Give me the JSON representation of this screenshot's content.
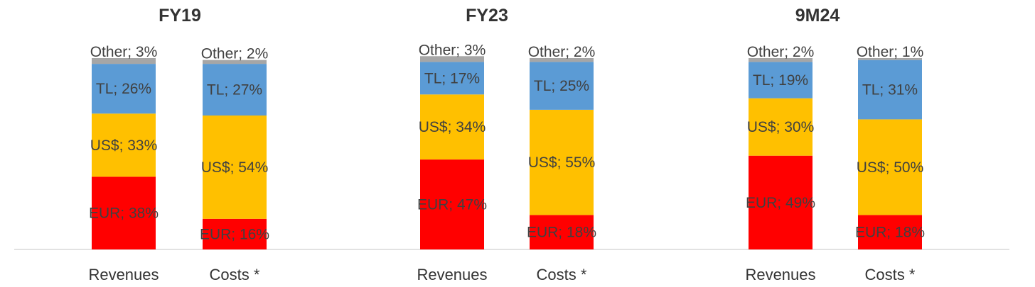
{
  "chart_data": [
    {
      "type": "bar",
      "stacked": true,
      "title": "FY19",
      "categories": [
        "Revenues",
        "Costs *"
      ],
      "series": [
        {
          "name": "EUR",
          "values": [
            38,
            16
          ]
        },
        {
          "name": "US$",
          "values": [
            33,
            54
          ]
        },
        {
          "name": "TL",
          "values": [
            26,
            27
          ]
        },
        {
          "name": "Other",
          "values": [
            3,
            2
          ]
        }
      ],
      "data_labels": [
        [
          "EUR; 38%",
          "EUR; 16%"
        ],
        [
          "US$; 33%",
          "US$; 54%"
        ],
        [
          "TL; 26%",
          "TL; 27%"
        ],
        [
          "Other; 3%",
          "Other; 2%"
        ]
      ],
      "ylim": [
        0,
        100
      ],
      "grid": false
    },
    {
      "type": "bar",
      "stacked": true,
      "title": "FY23",
      "categories": [
        "Revenues",
        "Costs *"
      ],
      "series": [
        {
          "name": "EUR",
          "values": [
            47,
            18
          ]
        },
        {
          "name": "US$",
          "values": [
            34,
            55
          ]
        },
        {
          "name": "TL",
          "values": [
            17,
            25
          ]
        },
        {
          "name": "Other",
          "values": [
            3,
            2
          ]
        }
      ],
      "data_labels": [
        [
          "EUR; 47%",
          "EUR; 18%"
        ],
        [
          "US$; 34%",
          "US$; 55%"
        ],
        [
          "TL; 17%",
          "TL; 25%"
        ],
        [
          "Other; 3%",
          "Other; 2%"
        ]
      ],
      "ylim": [
        0,
        100
      ],
      "grid": false
    },
    {
      "type": "bar",
      "stacked": true,
      "title": "9M24",
      "categories": [
        "Revenues",
        "Costs *"
      ],
      "series": [
        {
          "name": "EUR",
          "values": [
            49,
            18
          ]
        },
        {
          "name": "US$",
          "values": [
            30,
            50
          ]
        },
        {
          "name": "TL",
          "values": [
            19,
            31
          ]
        },
        {
          "name": "Other",
          "values": [
            2,
            1
          ]
        }
      ],
      "data_labels": [
        [
          "EUR; 49%",
          "EUR; 18%"
        ],
        [
          "US$; 30%",
          "US$; 50%"
        ],
        [
          "TL; 19%",
          "TL; 31%"
        ],
        [
          "Other; 2%",
          "Other; 1%"
        ]
      ],
      "ylim": [
        0,
        100
      ],
      "grid": false
    }
  ],
  "colors": {
    "EUR": "#ff0000",
    "US$": "#ffc000",
    "TL": "#5b9bd5",
    "Other": "#a6a6a6"
  }
}
